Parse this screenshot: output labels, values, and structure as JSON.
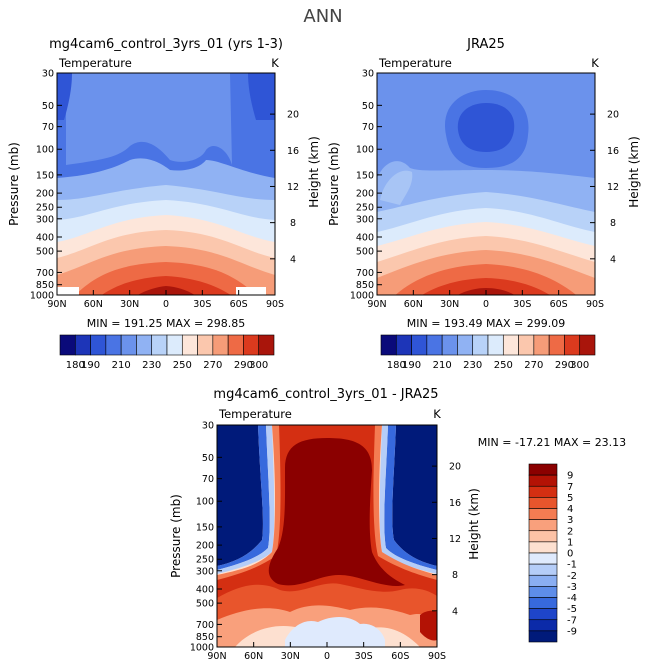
{
  "page_title": "ANN",
  "chart_data": [
    {
      "type": "heatmap",
      "title": "mg4cam6_control_3yrs_01 (yrs 1-3)",
      "variable": "Temperature",
      "units": "K",
      "ylabel": "Pressure (mb)",
      "ylabel_right": "Height (km)",
      "x_ticks": [
        "90N",
        "60N",
        "30N",
        "0",
        "30S",
        "60S",
        "90S"
      ],
      "y_ticks": [
        30,
        50,
        70,
        100,
        150,
        200,
        250,
        300,
        400,
        500,
        700,
        850,
        1000
      ],
      "height_ticks": [
        4,
        8,
        12,
        16,
        20
      ],
      "stats": "MIN = 191.25   MAX = 298.85",
      "colorbar_levels": [
        180,
        190,
        200,
        210,
        220,
        230,
        240,
        250,
        260,
        270,
        280,
        290,
        300
      ],
      "colorbar_tick_labels": [
        "180",
        "190",
        "210",
        "230",
        "250",
        "270",
        "290",
        "300"
      ],
      "colorbar_colors": [
        "#0a0a7a",
        "#1d35b8",
        "#2f55d6",
        "#4a74e4",
        "#6b92ec",
        "#90b2f3",
        "#b8d2f8",
        "#dcebfc",
        "#fde6da",
        "#fbc7ad",
        "#f69c78",
        "#ee6a45",
        "#db3a1e",
        "#a9150b"
      ]
    },
    {
      "type": "heatmap",
      "title": "JRA25",
      "variable": "Temperature",
      "units": "K",
      "ylabel": "Pressure (mb)",
      "ylabel_right": "Height (km)",
      "x_ticks": [
        "90N",
        "60N",
        "30N",
        "0",
        "30S",
        "60S",
        "90S"
      ],
      "y_ticks": [
        30,
        50,
        70,
        100,
        150,
        200,
        250,
        300,
        400,
        500,
        700,
        850,
        1000
      ],
      "height_ticks": [
        4,
        8,
        12,
        16,
        20
      ],
      "stats": "MIN = 193.49   MAX = 299.09",
      "colorbar_levels": [
        180,
        190,
        200,
        210,
        220,
        230,
        240,
        250,
        260,
        270,
        280,
        290,
        300
      ],
      "colorbar_tick_labels": [
        "180",
        "190",
        "210",
        "230",
        "250",
        "270",
        "290",
        "300"
      ],
      "colorbar_colors": [
        "#0a0a7a",
        "#1d35b8",
        "#2f55d6",
        "#4a74e4",
        "#6b92ec",
        "#90b2f3",
        "#b8d2f8",
        "#dcebfc",
        "#fde6da",
        "#fbc7ad",
        "#f69c78",
        "#ee6a45",
        "#db3a1e",
        "#a9150b"
      ]
    },
    {
      "type": "heatmap",
      "title": "mg4cam6_control_3yrs_01 - JRA25",
      "variable": "Temperature",
      "units": "K",
      "ylabel": "Pressure (mb)",
      "ylabel_right": "Height (km)",
      "x_ticks": [
        "90N",
        "60N",
        "30N",
        "0",
        "30S",
        "60S",
        "90S"
      ],
      "y_ticks": [
        30,
        50,
        70,
        100,
        150,
        200,
        250,
        300,
        400,
        500,
        700,
        850,
        1000
      ],
      "height_ticks": [
        4,
        8,
        12,
        16,
        20
      ],
      "stats": "MIN = -17.21   MAX =  23.13",
      "colorbar_levels": [
        "9",
        "7",
        "5",
        "4",
        "3",
        "2",
        "1",
        "0",
        "-1",
        "-2",
        "-3",
        "-4",
        "-5",
        "-7",
        "-9"
      ],
      "colorbar_colors": [
        "#8b0000",
        "#b31205",
        "#d42f12",
        "#e8552c",
        "#f47c52",
        "#f9a07c",
        "#fcc2a6",
        "#fde0d0",
        "#dfeafd",
        "#b5cdf8",
        "#8aaef2",
        "#5e8de9",
        "#3769dd",
        "#1e45c9",
        "#0b2aa8",
        "#001a7a"
      ]
    }
  ]
}
